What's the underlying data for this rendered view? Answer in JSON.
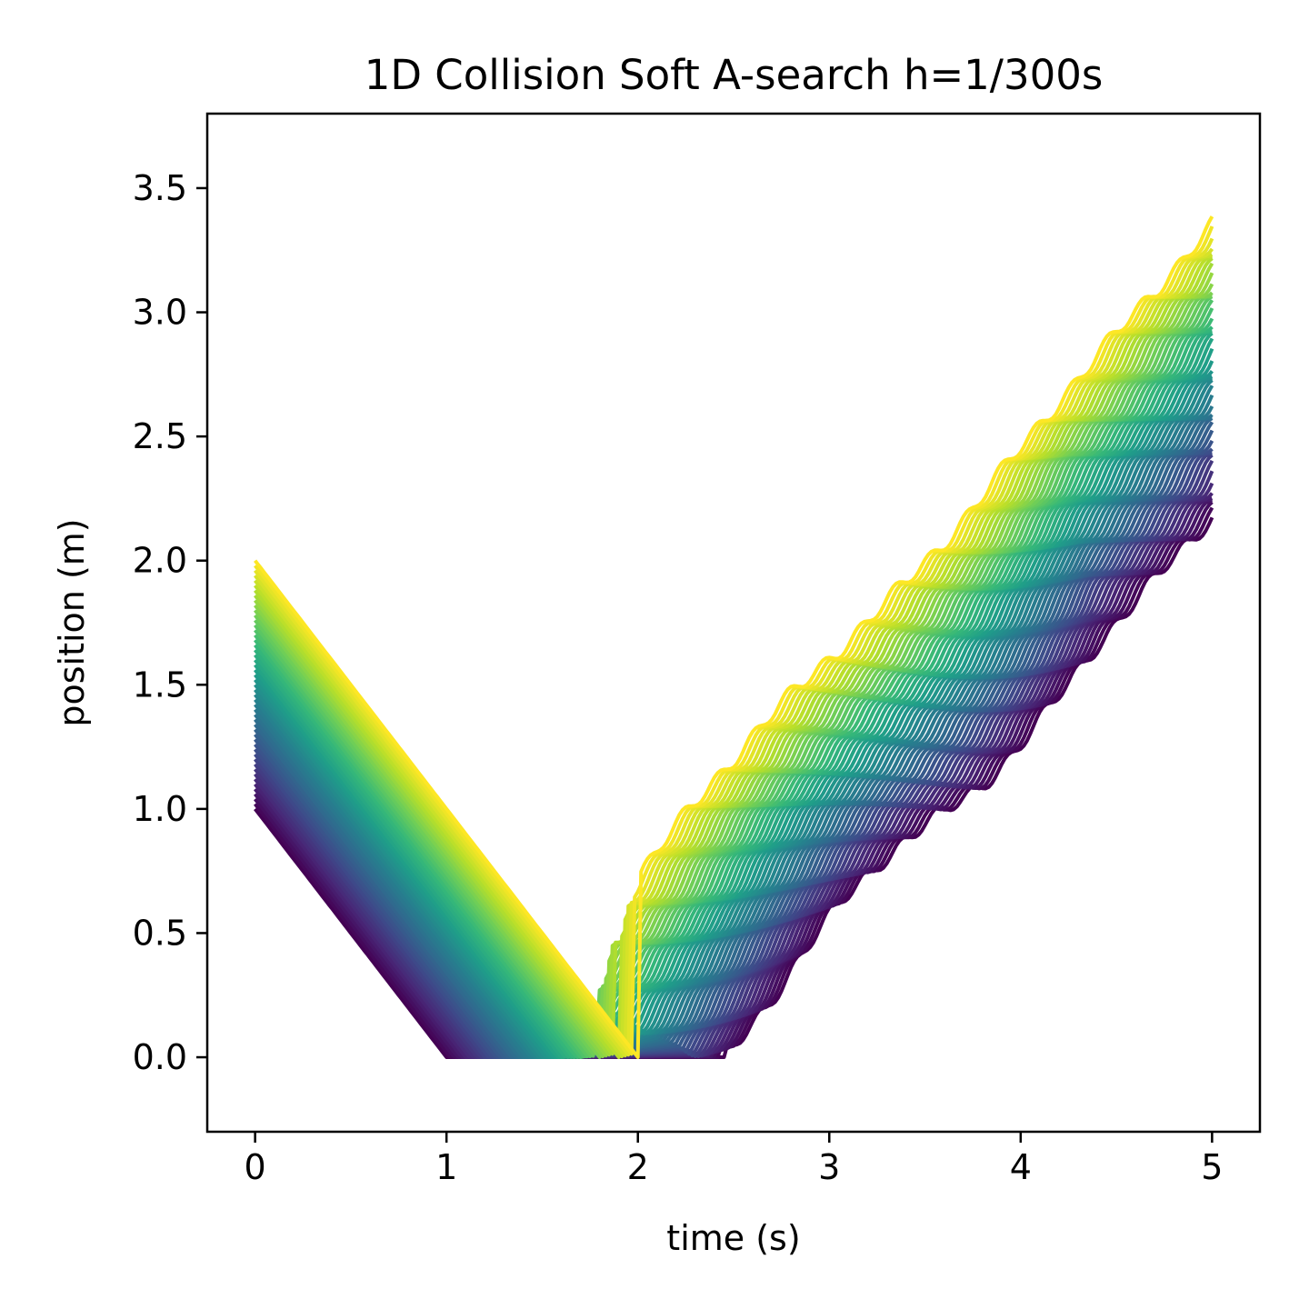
{
  "chart_data": {
    "type": "line",
    "title": "1D Collision Soft A-search h=1/300s",
    "xlabel": "time (s)",
    "ylabel": "position (m)",
    "xlim": [
      -0.25,
      5.25
    ],
    "ylim": [
      -0.3,
      3.8
    ],
    "xticks": [
      0,
      1,
      2,
      3,
      4,
      5
    ],
    "xtick_labels": [
      "0",
      "1",
      "2",
      "3",
      "4",
      "5"
    ],
    "yticks": [
      0.0,
      0.5,
      1.0,
      1.5,
      2.0,
      2.5,
      3.0,
      3.5
    ],
    "ytick_labels": [
      "0.0",
      "0.5",
      "1.0",
      "1.5",
      "2.0",
      "2.5",
      "3.0",
      "3.5"
    ],
    "grid": false,
    "legend": "none",
    "colormap": "viridis",
    "colormap_stops": [
      "#440154",
      "#482878",
      "#3e4a89",
      "#31688e",
      "#26828e",
      "#1f9e89",
      "#35b779",
      "#6ece58",
      "#b5de2b",
      "#fde725"
    ],
    "series_family": {
      "count": 51,
      "initial_position_range": [
        1.0,
        2.0
      ],
      "time_range": [
        0,
        5
      ],
      "final_position_range": [
        2.18,
        3.35
      ],
      "description_points": [
        {
          "name": "lowest initial (purple)",
          "x": [
            0,
            1.0,
            2.45,
            2.6,
            3.0,
            4.0,
            4.2,
            4.6,
            5.0
          ],
          "y": [
            1.0,
            0.0,
            0.0,
            0.1,
            0.55,
            1.45,
            1.55,
            1.8,
            2.18
          ]
        },
        {
          "name": "highest initial (yellow)",
          "x": [
            0,
            1.6,
            1.65,
            2.0,
            3.0,
            3.2,
            3.4,
            4.0,
            4.5,
            5.0
          ],
          "y": [
            2.0,
            0.35,
            0.45,
            0.75,
            1.7,
            1.85,
            1.9,
            2.4,
            2.8,
            3.35
          ]
        }
      ]
    }
  }
}
